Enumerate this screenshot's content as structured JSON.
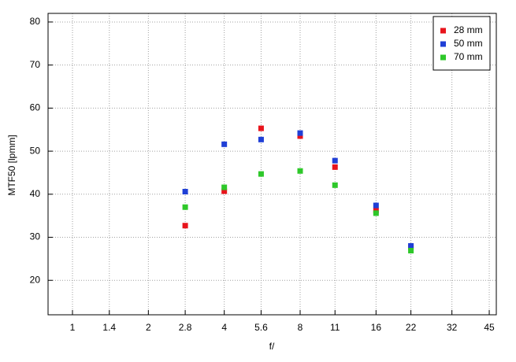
{
  "chart_data": {
    "type": "scatter",
    "xlabel": "f/",
    "ylabel": "MTF50 [lpmm]",
    "xscale": "log",
    "x": [
      2.8,
      4,
      5.6,
      8,
      11,
      16,
      22
    ],
    "series": [
      {
        "name": "28 mm",
        "color": "#e8141c",
        "values": [
          32.7,
          40.7,
          55.3,
          53.5,
          46.3,
          36.2,
          27.7
        ]
      },
      {
        "name": "50 mm",
        "color": "#1f3fd6",
        "values": [
          40.6,
          51.6,
          52.7,
          54.2,
          47.8,
          37.4,
          28.0
        ]
      },
      {
        "name": "70 mm",
        "color": "#2ec82a",
        "values": [
          37.0,
          41.6,
          44.7,
          45.4,
          42.1,
          35.6,
          26.9
        ]
      }
    ],
    "xlim": [
      0.8,
      48
    ],
    "xticks": [
      1,
      1.4,
      2,
      2.8,
      4,
      5.6,
      8,
      11,
      16,
      22,
      32,
      45
    ],
    "ylim": [
      12,
      82
    ],
    "yticks": [
      20,
      30,
      40,
      50,
      60,
      70,
      80
    ],
    "grid": true,
    "legend": "top-right"
  }
}
